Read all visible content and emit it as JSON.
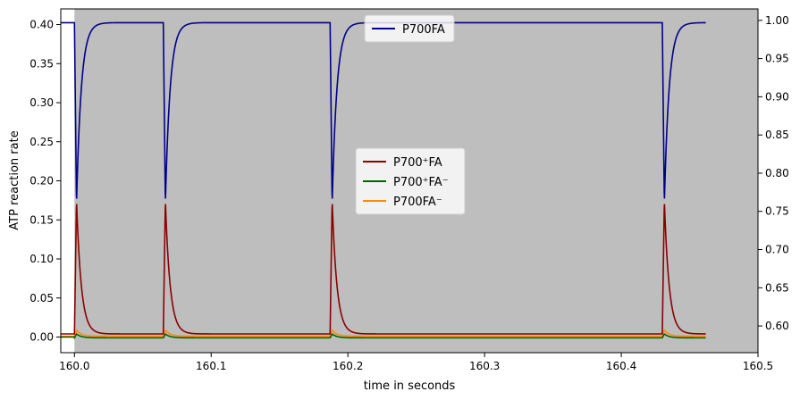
{
  "chart_data": {
    "type": "line",
    "xlabel": "time in seconds",
    "ylabel": "ATP reaction rate",
    "xlim": [
      159.99,
      160.5
    ],
    "ylim_left": [
      -0.02,
      0.42
    ],
    "ylim_right": [
      0.565,
      1.015
    ],
    "x_ticks": [
      "160.0",
      "160.1",
      "160.2",
      "160.3",
      "160.4",
      "160.5"
    ],
    "y_ticks_left": [
      "0.00",
      "0.05",
      "0.10",
      "0.15",
      "0.20",
      "0.25",
      "0.30",
      "0.35",
      "0.40"
    ],
    "y_ticks_right": [
      "0.60",
      "0.65",
      "0.70",
      "0.75",
      "0.80",
      "0.85",
      "0.90",
      "0.95",
      "1.00"
    ],
    "background_shading": {
      "from_x": 160.0,
      "color": "#bebebe"
    },
    "pulse_times": [
      160.0,
      160.065,
      160.187,
      160.43
    ],
    "x_end": 160.462,
    "series": [
      {
        "name": "P700FA",
        "axis": "right",
        "color": "#00008b",
        "baseline": 0.997,
        "peak": 0.76,
        "before_start": 0.997
      },
      {
        "name": "P700⁺FA",
        "axis": "left",
        "color": "#8b0000",
        "baseline": 0.004,
        "peak": 0.175,
        "before_start": 0.004
      },
      {
        "name": "P700⁺FA⁻",
        "axis": "left",
        "color": "#006400",
        "baseline": -0.001,
        "peak": 0.004,
        "before_start": 0.0
      },
      {
        "name": "P700FA⁻",
        "axis": "left",
        "color": "#ff8c00",
        "baseline": 0.001,
        "peak": 0.009,
        "before_start": 0.001
      }
    ],
    "legends": [
      {
        "placement": "top-center",
        "entries": [
          "P700FA"
        ]
      },
      {
        "placement": "center",
        "entries": [
          "P700⁺FA",
          "P700⁺FA⁻",
          "P700FA⁻"
        ]
      }
    ]
  }
}
